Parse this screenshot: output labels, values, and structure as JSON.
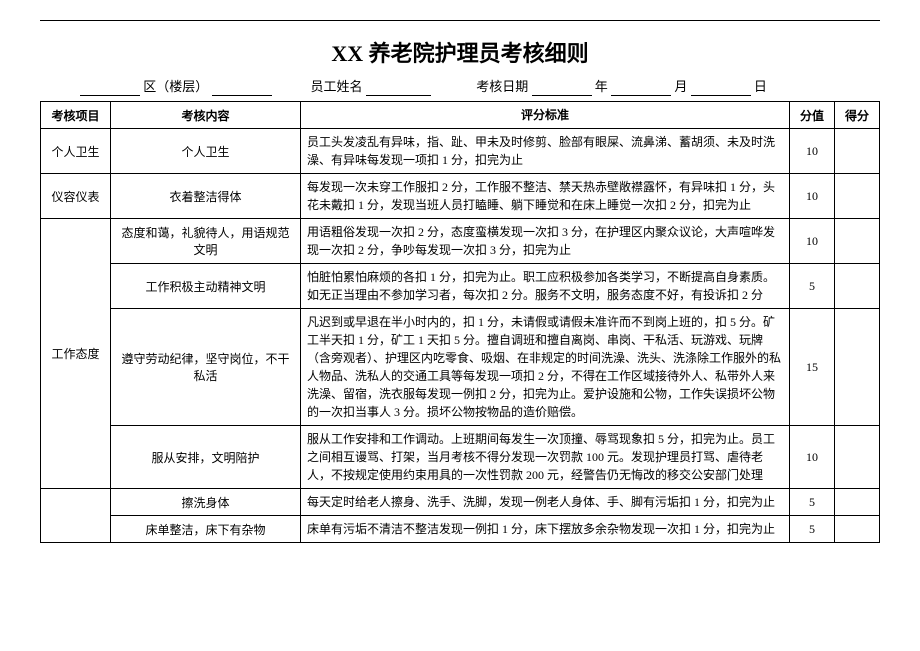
{
  "title": "XX 养老院护理员考核细则",
  "header": {
    "area_label": "区（楼层）",
    "name_label": "员工姓名",
    "date_label": "考核日期",
    "year": "年",
    "month": "月",
    "day": "日"
  },
  "columns": {
    "project": "考核项目",
    "content": "考核内容",
    "criteria": "评分标准",
    "score": "分值",
    "got": "得分"
  },
  "rows": [
    {
      "project": "个人卫生",
      "project_rowspan": 1,
      "content": "个人卫生",
      "criteria": "员工头发凌乱有异味，指、趾、甲未及时修剪、脸部有眼屎、流鼻涕、蓄胡须、未及时洗澡、有异味每发现一项扣 1 分，扣完为止",
      "score": "10"
    },
    {
      "project": "仪容仪表",
      "project_rowspan": 1,
      "content": "衣着整洁得体",
      "criteria": "每发现一次未穿工作服扣 2 分，工作服不整洁、禁天热赤壁敞襟露怀，有异味扣 1 分，头花未戴扣 1 分，发现当班人员打瞌睡、躺下睡觉和在床上睡觉一次扣 2 分，扣完为止",
      "score": "10"
    },
    {
      "project": "工作态度",
      "project_rowspan": 4,
      "content": "态度和蔼，礼貌待人，用语规范文明",
      "criteria": "用语粗俗发现一次扣 2 分，态度蛮横发现一次扣 3 分，在护理区内聚众议论，大声喧哗发现一次扣 2 分，争吵每发现一次扣 3 分，扣完为止",
      "score": "10"
    },
    {
      "content": "工作积极主动精神文明",
      "criteria": "怕脏怕累怕麻烦的各扣 1 分，扣完为止。职工应积极参加各类学习，不断提高自身素质。如无正当理由不参加学习者，每次扣 2 分。服务不文明，服务态度不好，有投诉扣 2 分",
      "score": "5"
    },
    {
      "content": "遵守劳动纪律，坚守岗位，不干私活",
      "criteria": "凡迟到或早退在半小时内的，扣 1 分，未请假或请假未准许而不到岗上班的，扣 5 分。矿工半天扣 1 分，矿工 1 天扣 5 分。擅自调班和擅自离岗、串岗、干私活、玩游戏、玩牌（含旁观者）、护理区内吃零食、吸烟、在非规定的时间洗澡、洗头、洗涤除工作服外的私人物品、洗私人的交通工具等每发现一项扣 2 分，不得在工作区域接待外人、私带外人来洗澡、留宿，洗衣服每发现一例扣 2 分，扣完为止。爱护设施和公物，工作失误损坏公物的一次扣当事人 3 分。损坏公物按物品的造价赔偿。",
      "score": "15"
    },
    {
      "content": "服从安排，文明陪护",
      "criteria": "服从工作安排和工作调动。上班期间每发生一次顶撞、辱骂现象扣 5 分，扣完为止。员工之间相互谩骂、打架，当月考核不得分发现一次罚款 100 元。发现护理员打骂、虐待老人，不按规定使用约束用具的一次性罚款 200 元，经警告仍无悔改的移交公安部门处理",
      "score": "10"
    },
    {
      "project": "",
      "project_rowspan": 2,
      "content": "擦洗身体",
      "criteria": "每天定时给老人擦身、洗手、洗脚，发现一例老人身体、手、脚有污垢扣 1 分，扣完为止",
      "score": "5"
    },
    {
      "content": "床单整洁，床下有杂物",
      "criteria": "床单有污垢不清洁不整洁发现一例扣 1 分，床下摆放多余杂物发现一次扣 1 分，扣完为止",
      "score": "5"
    }
  ]
}
